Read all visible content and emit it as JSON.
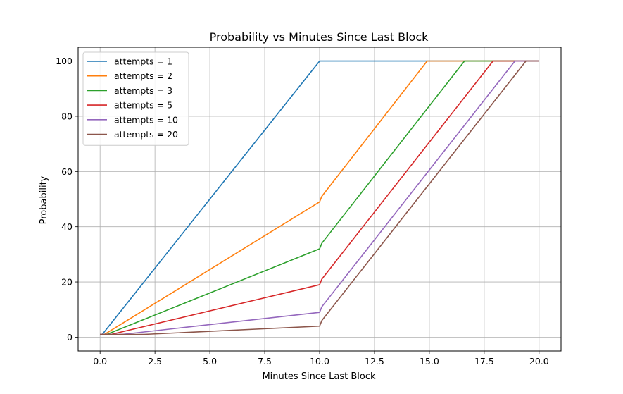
{
  "chart_data": {
    "type": "line",
    "title": "Probability vs Minutes Since Last Block",
    "xlabel": "Minutes Since Last Block",
    "ylabel": "Probability",
    "xlim": [
      -1.0,
      21.0
    ],
    "ylim": [
      -5,
      105
    ],
    "xticks": [
      0.0,
      2.5,
      5.0,
      7.5,
      10.0,
      12.5,
      15.0,
      17.5,
      20.0
    ],
    "xtick_labels": [
      "0.0",
      "2.5",
      "5.0",
      "7.5",
      "10.0",
      "12.5",
      "15.0",
      "17.5",
      "20.0"
    ],
    "yticks": [
      0,
      20,
      40,
      60,
      80,
      100
    ],
    "ytick_labels": [
      "0",
      "20",
      "40",
      "60",
      "80",
      "100"
    ],
    "grid": true,
    "legend_position": "top-left",
    "series": [
      {
        "name": "attempts = 1",
        "color": "#1f77b4",
        "x": [
          0.0,
          0.1,
          10.0,
          20.0
        ],
        "y": [
          1,
          1,
          100,
          100
        ]
      },
      {
        "name": "attempts = 2",
        "color": "#ff7f0e",
        "x": [
          0.0,
          0.2,
          10.0,
          10.1,
          14.9,
          20.0
        ],
        "y": [
          1,
          1,
          49,
          51,
          100,
          100
        ]
      },
      {
        "name": "attempts = 3",
        "color": "#2ca02c",
        "x": [
          0.0,
          0.3,
          10.0,
          10.1,
          16.6,
          20.0
        ],
        "y": [
          1,
          1,
          32,
          34,
          100,
          100
        ]
      },
      {
        "name": "attempts = 5",
        "color": "#d62728",
        "x": [
          0.0,
          0.5,
          10.0,
          10.1,
          17.9,
          20.0
        ],
        "y": [
          1,
          1,
          19,
          21,
          100,
          100
        ]
      },
      {
        "name": "attempts = 10",
        "color": "#9467bd",
        "x": [
          0.0,
          1.0,
          10.0,
          10.1,
          18.9,
          20.0
        ],
        "y": [
          1,
          1,
          9,
          11,
          100,
          100
        ]
      },
      {
        "name": "attempts = 20",
        "color": "#8c564b",
        "x": [
          0.0,
          2.0,
          10.0,
          10.1,
          19.4,
          20.0
        ],
        "y": [
          1,
          1,
          4,
          6,
          100,
          100
        ]
      }
    ]
  }
}
